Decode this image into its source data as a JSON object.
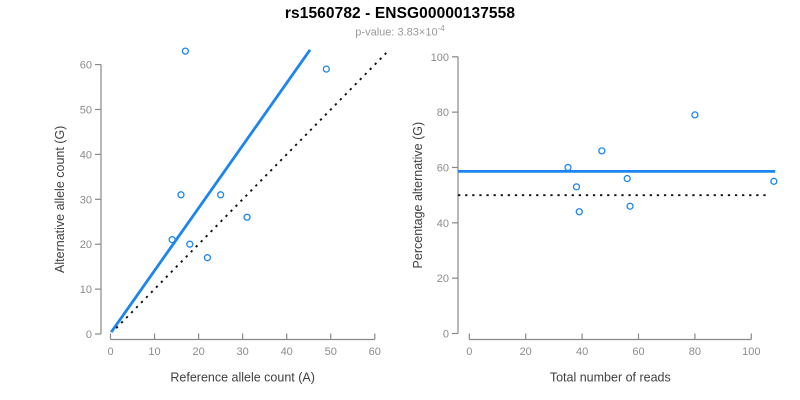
{
  "header": {
    "title": "rs1560782 - ENSG00000137558",
    "pvalue_text": "p-value: 3.83×10",
    "pvalue_exponent": "-4"
  },
  "colors": {
    "accent_blue": "#1C86EE",
    "axis_line_gray": "#888888",
    "tick_label_gray": "#8C8C8C",
    "axis_title_dark": "#404040",
    "identity_line_black": "#111111"
  },
  "chart_data": [
    {
      "type": "scatter",
      "name": "allele-counts-plot",
      "xlabel": "Reference allele count (A)",
      "ylabel": "Alternative allele count (G)",
      "xlim": [
        0,
        63
      ],
      "ylim": [
        0,
        63.5
      ],
      "xticks": [
        0,
        10,
        20,
        30,
        40,
        50,
        60
      ],
      "yticks": [
        0,
        10,
        20,
        30,
        40,
        50,
        60
      ],
      "grid": false,
      "points": [
        {
          "x": 17,
          "y": 63
        },
        {
          "x": 49,
          "y": 59
        },
        {
          "x": 16,
          "y": 31
        },
        {
          "x": 25,
          "y": 31
        },
        {
          "x": 31,
          "y": 26
        },
        {
          "x": 14,
          "y": 21
        },
        {
          "x": 18,
          "y": 20
        },
        {
          "x": 22,
          "y": 17
        }
      ],
      "lines": [
        {
          "name": "regression-line",
          "style": "solid",
          "color": "blue",
          "x1": 0.15,
          "y1": 0.4,
          "x2": 45.3,
          "y2": 63.3
        },
        {
          "name": "identity-line",
          "style": "dotted",
          "color": "black",
          "x1": 1.3,
          "y1": 1.3,
          "x2": 62.6,
          "y2": 62.6
        }
      ]
    },
    {
      "type": "scatter",
      "name": "percentage-vs-reads-plot",
      "xlabel": "Total number of reads",
      "ylabel": "Percentage alternative (G)",
      "xlim": [
        -4,
        112
      ],
      "ylim": [
        0,
        100
      ],
      "xticks": [
        0,
        20,
        40,
        60,
        80,
        100
      ],
      "yticks": [
        0,
        20,
        40,
        60,
        80,
        100
      ],
      "grid": false,
      "points": [
        {
          "x": 35,
          "y": 60
        },
        {
          "x": 38,
          "y": 53
        },
        {
          "x": 39,
          "y": 44
        },
        {
          "x": 47,
          "y": 66
        },
        {
          "x": 56,
          "y": 56
        },
        {
          "x": 57,
          "y": 46
        },
        {
          "x": 80,
          "y": 79
        },
        {
          "x": 108,
          "y": 55
        }
      ],
      "lines": [
        {
          "name": "mean-percentage-line",
          "style": "solid",
          "color": "blue",
          "x1": -4,
          "y1": 58.6,
          "x2": 108.5,
          "y2": 58.6
        },
        {
          "name": "fifty-percent-line",
          "style": "dotted",
          "color": "black",
          "x1": -4,
          "y1": 50,
          "x2": 106,
          "y2": 50
        }
      ]
    }
  ]
}
